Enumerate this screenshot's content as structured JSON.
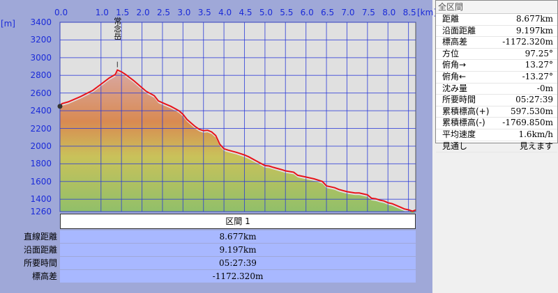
{
  "chart_data": {
    "type": "area",
    "x_unit": "[km]",
    "y_unit": "[m]",
    "xlim": [
      0,
      8.677
    ],
    "ylim": [
      1260,
      3400
    ],
    "x_ticks": [
      "0.0",
      "1.0",
      "1.5",
      "2.0",
      "2.5",
      "3.0",
      "3.5",
      "4.0",
      "4.5",
      "5.0",
      "5.5",
      "6.0",
      "6.5",
      "7.0",
      "7.5",
      "8.0",
      "8.5"
    ],
    "y_ticks": [
      "3400",
      "3200",
      "3000",
      "2800",
      "2600",
      "2400",
      "2200",
      "2000",
      "1800",
      "1600",
      "1400",
      "1260"
    ],
    "peak_label": "常念岳",
    "peak": {
      "x": 1.4,
      "y": 2860
    },
    "series": [
      {
        "x": [
          0.0,
          0.05,
          0.2,
          0.5,
          0.8,
          1.0,
          1.2,
          1.35,
          1.4,
          1.5,
          1.6,
          1.8,
          2.0,
          2.1,
          2.3,
          2.4,
          2.6,
          2.7,
          2.9,
          3.0,
          3.1,
          3.3,
          3.4,
          3.5,
          3.6,
          3.7,
          3.8,
          3.9,
          4.0,
          4.1,
          4.3,
          4.4,
          4.5,
          4.6,
          4.8,
          5.0,
          5.1,
          5.2,
          5.4,
          5.5,
          5.7,
          5.8,
          6.0,
          6.2,
          6.4,
          6.5,
          6.7,
          6.8,
          7.0,
          7.2,
          7.3,
          7.4,
          7.5,
          7.6,
          7.7,
          7.8,
          7.9,
          8.0,
          8.1,
          8.2,
          8.3,
          8.4,
          8.5,
          8.6,
          8.677
        ],
        "y": [
          2450,
          2480,
          2500,
          2560,
          2630,
          2700,
          2770,
          2810,
          2860,
          2840,
          2810,
          2740,
          2660,
          2620,
          2570,
          2510,
          2470,
          2450,
          2400,
          2360,
          2300,
          2220,
          2190,
          2175,
          2180,
          2160,
          2120,
          2020,
          1970,
          1955,
          1930,
          1915,
          1900,
          1880,
          1830,
          1780,
          1775,
          1760,
          1735,
          1720,
          1705,
          1670,
          1650,
          1630,
          1600,
          1550,
          1530,
          1510,
          1485,
          1470,
          1470,
          1460,
          1450,
          1410,
          1405,
          1390,
          1380,
          1360,
          1350,
          1330,
          1310,
          1290,
          1280,
          1265,
          1278
        ]
      }
    ]
  },
  "section": {
    "header": "区間 1"
  },
  "summary": [
    {
      "label": "直線距離",
      "value": "8.677km"
    },
    {
      "label": "沿面距離",
      "value": "9.197km"
    },
    {
      "label": "所要時間",
      "value": "05:27:39"
    },
    {
      "label": "標高差",
      "value": "-1172.320m"
    }
  ],
  "stats": {
    "title": "全区間",
    "rows": [
      {
        "label": "距離",
        "value": "8.677km"
      },
      {
        "label": "沿面距離",
        "value": "9.197km"
      },
      {
        "label": "標高差",
        "value": "-1172.320m"
      },
      {
        "label": "方位",
        "value": "97.25°"
      },
      {
        "label": "俯角→",
        "value": "13.27°"
      },
      {
        "label": "俯角←",
        "value": "-13.27°"
      },
      {
        "label": "沈み量",
        "value": "-0m"
      },
      {
        "label": "所要時間",
        "value": "05:27:39"
      },
      {
        "label": "累積標高(+)",
        "value": "597.530m"
      },
      {
        "label": "累積標高(-)",
        "value": "-1769.850m"
      },
      {
        "label": "平均速度",
        "value": "1.6km/h"
      },
      {
        "label": "見通し",
        "value": "見えます"
      }
    ]
  },
  "colors": {
    "profile_line": "#e8141a",
    "plot_bg": "#e0e0e0",
    "grid": "#2b3bd8",
    "panel_bg": "#9fa8d8",
    "summary_bg": "#a8b8ff"
  }
}
